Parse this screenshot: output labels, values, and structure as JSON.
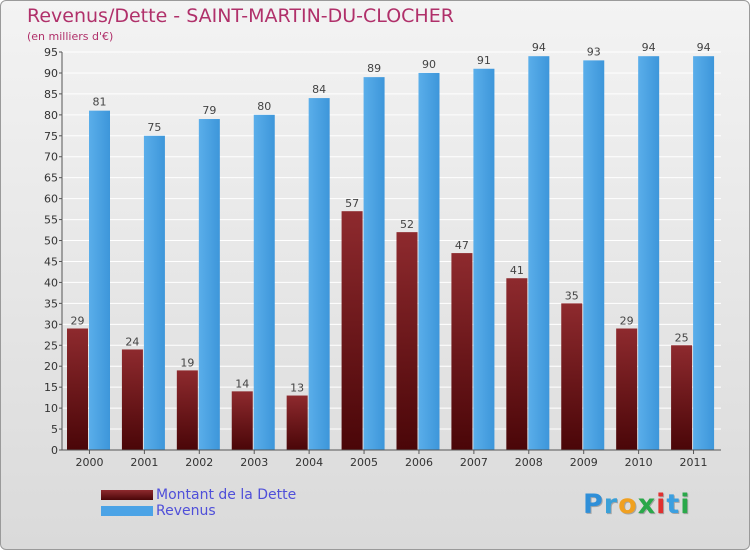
{
  "header": {
    "title": "Revenus/Dette - SAINT-MARTIN-DU-CLOCHER",
    "subtitle": "(en milliers d'€)"
  },
  "legend": {
    "items": [
      {
        "label": "Montant de la Dette",
        "color": "#7a1a1e"
      },
      {
        "label": "Revenus",
        "color": "#4ba3e6"
      }
    ]
  },
  "logo": {
    "letters": [
      {
        "char": "P",
        "color": "#2f8fd8"
      },
      {
        "char": "r",
        "color": "#3aa0d8"
      },
      {
        "char": "o",
        "color": "#f0a020"
      },
      {
        "char": "x",
        "color": "#2aa84a"
      },
      {
        "char": "i",
        "color": "#e03030"
      },
      {
        "char": "t",
        "color": "#3b9fe0"
      },
      {
        "char": "i",
        "color": "#2aa84a"
      }
    ]
  },
  "chart_data": {
    "type": "bar",
    "categories": [
      "2000",
      "2001",
      "2002",
      "2003",
      "2004",
      "2005",
      "2006",
      "2007",
      "2008",
      "2009",
      "2010",
      "2011"
    ],
    "series": [
      {
        "name": "Montant de la Dette",
        "color": "#7a1a1e",
        "values": [
          29,
          24,
          19,
          14,
          13,
          57,
          52,
          47,
          41,
          35,
          29,
          25
        ]
      },
      {
        "name": "Revenus",
        "color": "#4ba3e6",
        "values": [
          81,
          75,
          79,
          80,
          84,
          89,
          90,
          91,
          94,
          93,
          94,
          94
        ]
      }
    ],
    "yticks": [
      0,
      5,
      10,
      15,
      20,
      25,
      30,
      35,
      40,
      45,
      50,
      55,
      60,
      65,
      70,
      75,
      80,
      85,
      90,
      95
    ],
    "ylim": [
      0,
      95
    ],
    "grid": true,
    "legend_position": "bottom-left"
  }
}
